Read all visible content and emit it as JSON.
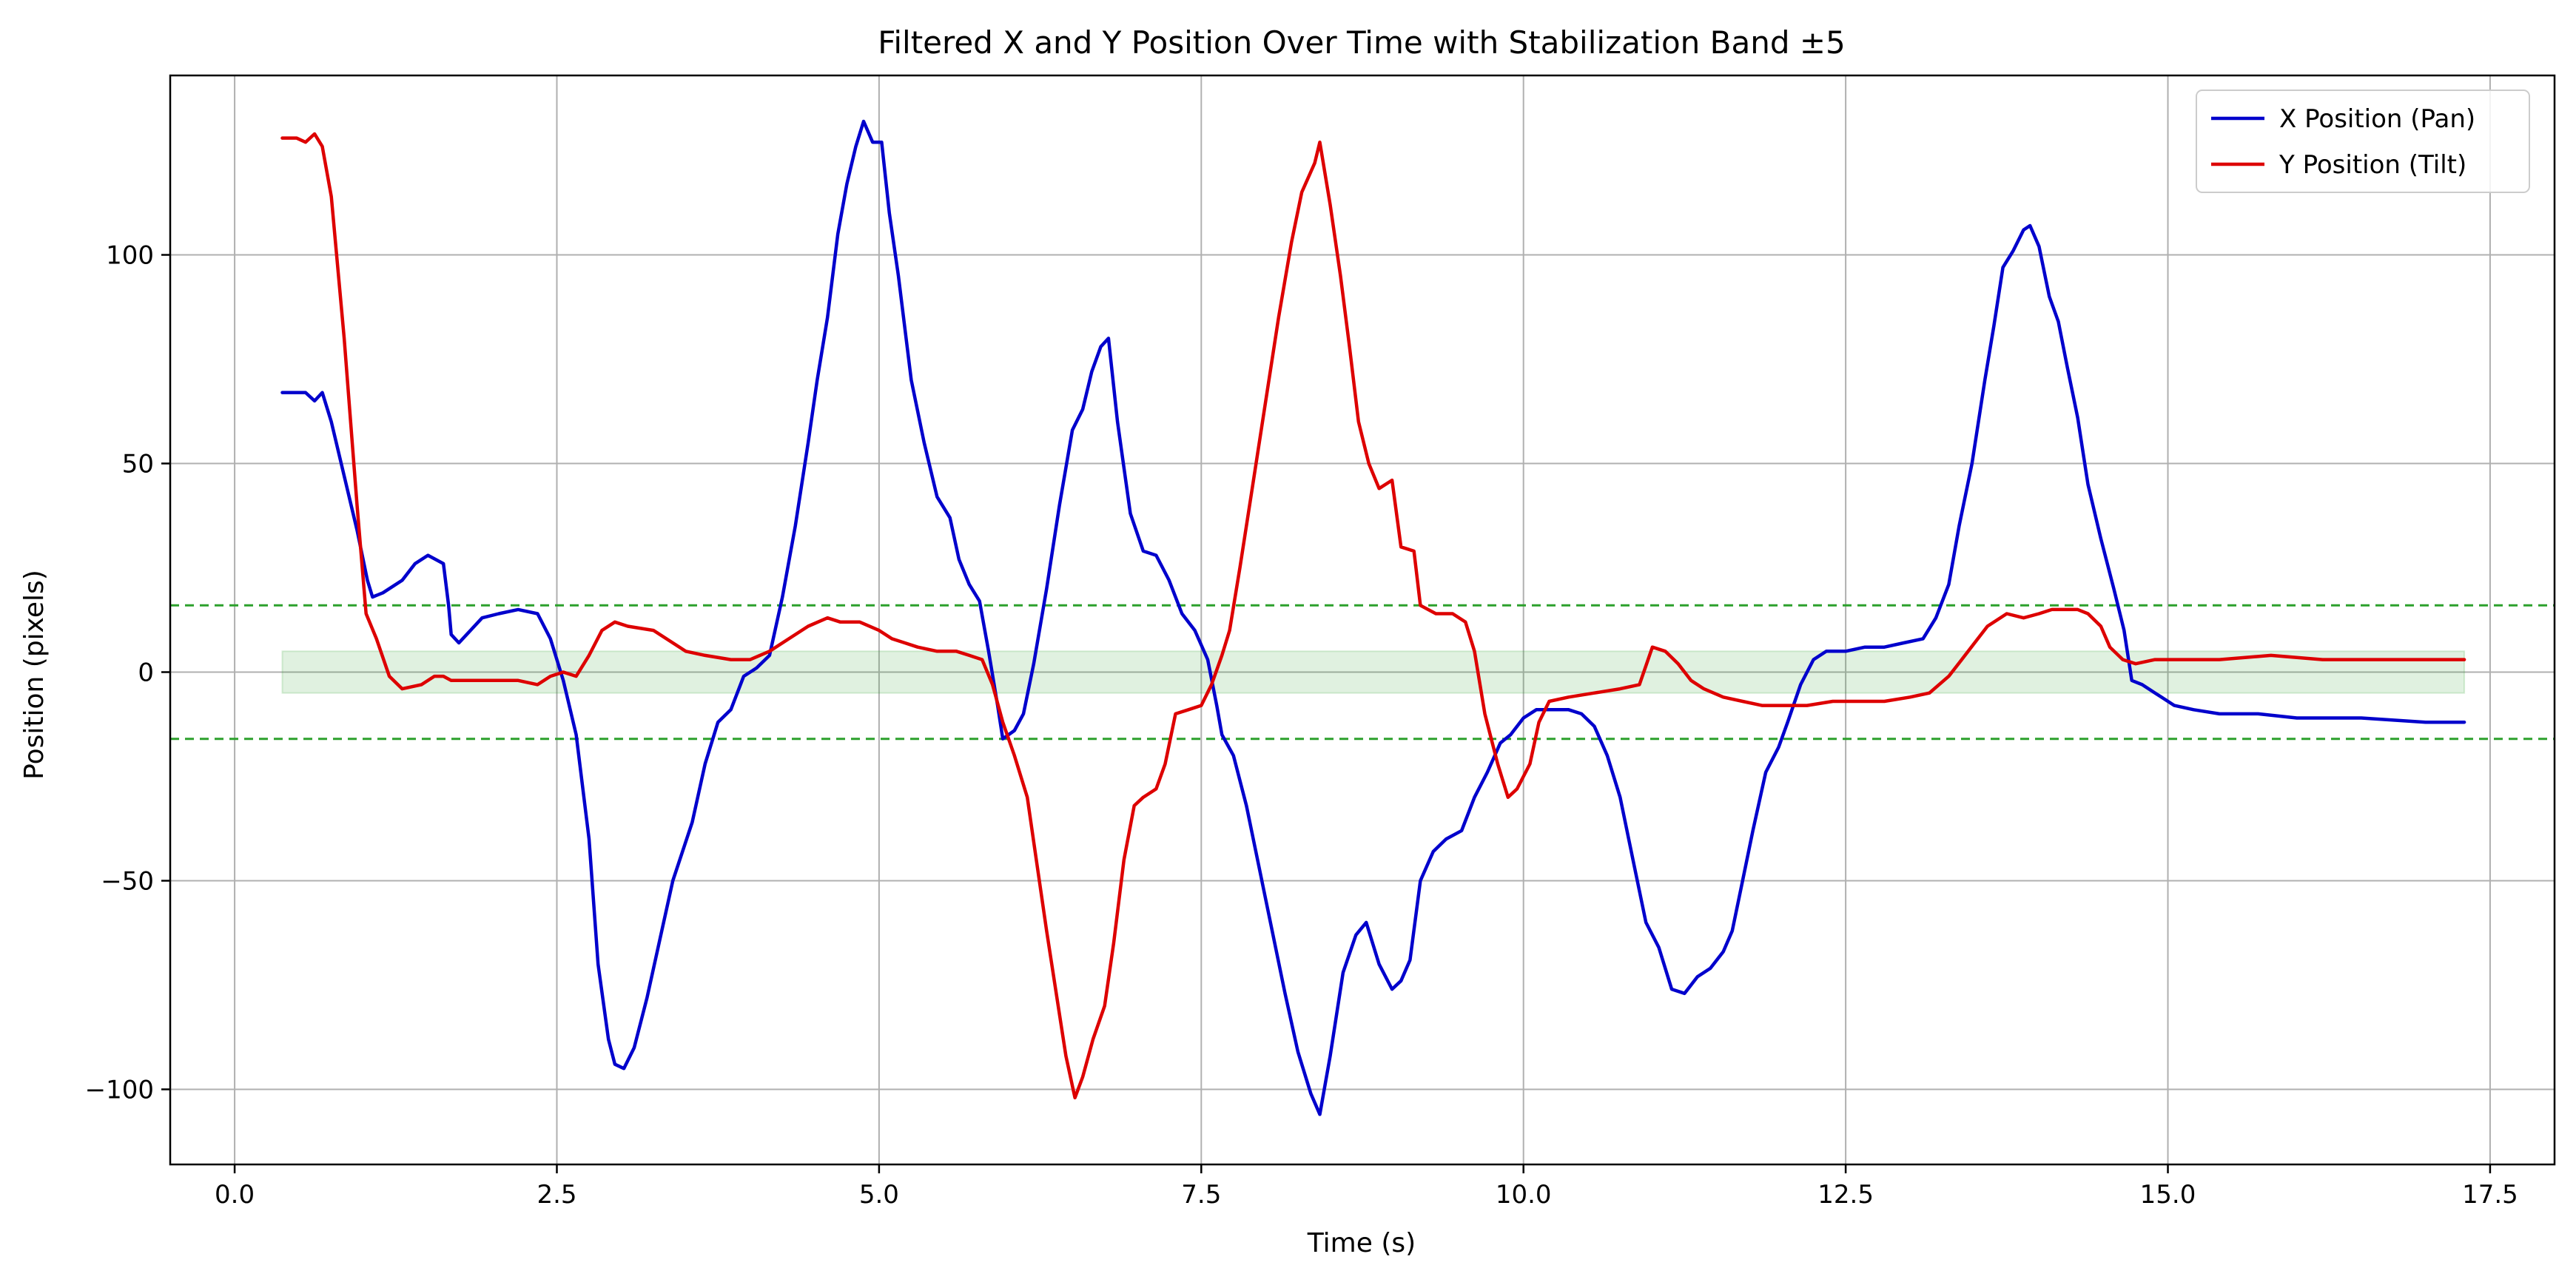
{
  "chart_data": {
    "type": "line",
    "title": "Filtered X and Y Position Over Time with Stabilization Band ±5",
    "xlabel": "Time (s)",
    "ylabel": "Position (pixels)",
    "xlim": [
      -0.5,
      18.0
    ],
    "ylim": [
      -118,
      143
    ],
    "x_ticks": [
      0.0,
      2.5,
      5.0,
      7.5,
      10.0,
      12.5,
      15.0,
      17.5
    ],
    "x_tick_labels": [
      "0.0",
      "2.5",
      "5.0",
      "7.5",
      "10.0",
      "12.5",
      "15.0",
      "17.5"
    ],
    "y_ticks": [
      -100,
      -50,
      0,
      50,
      100
    ],
    "y_tick_labels": [
      "−100",
      "−50",
      "0",
      "50",
      "100"
    ],
    "grid": true,
    "legend_position": "top-right",
    "stabilization_band": {
      "x_start": 0.37,
      "x_end": 17.3,
      "y_min": -5,
      "y_max": 5,
      "color": "#2ca02c"
    },
    "threshold_lines": [
      16,
      -16
    ],
    "threshold_color": "#2ca02c",
    "series": [
      {
        "name": "X Position (Pan)",
        "color": "#0000cc",
        "points": [
          [
            0.37,
            67
          ],
          [
            0.55,
            67
          ],
          [
            0.62,
            65
          ],
          [
            0.68,
            67
          ],
          [
            0.75,
            60
          ],
          [
            0.85,
            47
          ],
          [
            0.95,
            34
          ],
          [
            1.03,
            22
          ],
          [
            1.07,
            18
          ],
          [
            1.15,
            19
          ],
          [
            1.3,
            22
          ],
          [
            1.4,
            26
          ],
          [
            1.5,
            28
          ],
          [
            1.62,
            26
          ],
          [
            1.66,
            16
          ],
          [
            1.68,
            9
          ],
          [
            1.74,
            7
          ],
          [
            1.8,
            9
          ],
          [
            1.92,
            13
          ],
          [
            2.05,
            14
          ],
          [
            2.2,
            15
          ],
          [
            2.35,
            14
          ],
          [
            2.45,
            8
          ],
          [
            2.55,
            -2
          ],
          [
            2.65,
            -15
          ],
          [
            2.75,
            -40
          ],
          [
            2.82,
            -70
          ],
          [
            2.9,
            -88
          ],
          [
            2.95,
            -94
          ],
          [
            3.02,
            -95
          ],
          [
            3.1,
            -90
          ],
          [
            3.2,
            -78
          ],
          [
            3.3,
            -64
          ],
          [
            3.4,
            -50
          ],
          [
            3.55,
            -36
          ],
          [
            3.65,
            -22
          ],
          [
            3.75,
            -12
          ],
          [
            3.85,
            -9
          ],
          [
            3.95,
            -1
          ],
          [
            4.05,
            1
          ],
          [
            4.15,
            4
          ],
          [
            4.25,
            18
          ],
          [
            4.35,
            35
          ],
          [
            4.45,
            55
          ],
          [
            4.52,
            70
          ],
          [
            4.6,
            85
          ],
          [
            4.68,
            105
          ],
          [
            4.75,
            117
          ],
          [
            4.82,
            126
          ],
          [
            4.88,
            132
          ],
          [
            4.95,
            127
          ],
          [
            5.02,
            127
          ],
          [
            5.08,
            110
          ],
          [
            5.15,
            95
          ],
          [
            5.25,
            70
          ],
          [
            5.35,
            55
          ],
          [
            5.45,
            42
          ],
          [
            5.55,
            37
          ],
          [
            5.62,
            27
          ],
          [
            5.7,
            21
          ],
          [
            5.78,
            17
          ],
          [
            5.85,
            5
          ],
          [
            5.92,
            -8
          ],
          [
            5.96,
            -16
          ],
          [
            6.05,
            -14
          ],
          [
            6.12,
            -10
          ],
          [
            6.2,
            2
          ],
          [
            6.3,
            20
          ],
          [
            6.4,
            40
          ],
          [
            6.5,
            58
          ],
          [
            6.58,
            63
          ],
          [
            6.65,
            72
          ],
          [
            6.72,
            78
          ],
          [
            6.78,
            80
          ],
          [
            6.85,
            60
          ],
          [
            6.95,
            38
          ],
          [
            7.05,
            29
          ],
          [
            7.15,
            28
          ],
          [
            7.25,
            22
          ],
          [
            7.35,
            14
          ],
          [
            7.45,
            10
          ],
          [
            7.55,
            3
          ],
          [
            7.62,
            -8
          ],
          [
            7.66,
            -15
          ],
          [
            7.75,
            -20
          ],
          [
            7.85,
            -32
          ],
          [
            7.95,
            -47
          ],
          [
            8.05,
            -62
          ],
          [
            8.15,
            -77
          ],
          [
            8.25,
            -91
          ],
          [
            8.35,
            -101
          ],
          [
            8.42,
            -106
          ],
          [
            8.5,
            -92
          ],
          [
            8.6,
            -72
          ],
          [
            8.7,
            -63
          ],
          [
            8.78,
            -60
          ],
          [
            8.88,
            -70
          ],
          [
            8.98,
            -76
          ],
          [
            9.05,
            -74
          ],
          [
            9.12,
            -69
          ],
          [
            9.2,
            -50
          ],
          [
            9.3,
            -43
          ],
          [
            9.4,
            -40
          ],
          [
            9.52,
            -38
          ],
          [
            9.62,
            -30
          ],
          [
            9.72,
            -24
          ],
          [
            9.82,
            -17
          ],
          [
            9.9,
            -15
          ],
          [
            10.0,
            -11
          ],
          [
            10.1,
            -9
          ],
          [
            10.2,
            -9
          ],
          [
            10.35,
            -9
          ],
          [
            10.45,
            -10
          ],
          [
            10.55,
            -13
          ],
          [
            10.65,
            -20
          ],
          [
            10.75,
            -30
          ],
          [
            10.85,
            -45
          ],
          [
            10.95,
            -60
          ],
          [
            11.05,
            -66
          ],
          [
            11.15,
            -76
          ],
          [
            11.25,
            -77
          ],
          [
            11.35,
            -73
          ],
          [
            11.45,
            -71
          ],
          [
            11.55,
            -67
          ],
          [
            11.62,
            -62
          ],
          [
            11.7,
            -50
          ],
          [
            11.78,
            -38
          ],
          [
            11.88,
            -24
          ],
          [
            11.98,
            -18
          ],
          [
            12.05,
            -12
          ],
          [
            12.15,
            -3
          ],
          [
            12.25,
            3
          ],
          [
            12.35,
            5
          ],
          [
            12.5,
            5
          ],
          [
            12.65,
            6
          ],
          [
            12.8,
            6
          ],
          [
            12.95,
            7
          ],
          [
            13.1,
            8
          ],
          [
            13.2,
            13
          ],
          [
            13.3,
            21
          ],
          [
            13.38,
            35
          ],
          [
            13.48,
            50
          ],
          [
            13.58,
            70
          ],
          [
            13.65,
            83
          ],
          [
            13.72,
            97
          ],
          [
            13.8,
            101
          ],
          [
            13.88,
            106
          ],
          [
            13.93,
            107
          ],
          [
            14.0,
            102
          ],
          [
            14.08,
            90
          ],
          [
            14.15,
            84
          ],
          [
            14.22,
            73
          ],
          [
            14.3,
            61
          ],
          [
            14.38,
            45
          ],
          [
            14.48,
            32
          ],
          [
            14.58,
            20
          ],
          [
            14.66,
            10
          ],
          [
            14.72,
            -2
          ],
          [
            14.8,
            -3
          ],
          [
            14.9,
            -5
          ],
          [
            15.05,
            -8
          ],
          [
            15.2,
            -9
          ],
          [
            15.4,
            -10
          ],
          [
            15.7,
            -10
          ],
          [
            16.0,
            -11
          ],
          [
            16.5,
            -11
          ],
          [
            17.0,
            -12
          ],
          [
            17.3,
            -12
          ]
        ]
      },
      {
        "name": "Y Position (Tilt)",
        "color": "#dd0000",
        "points": [
          [
            0.37,
            128
          ],
          [
            0.48,
            128
          ],
          [
            0.55,
            127
          ],
          [
            0.62,
            129
          ],
          [
            0.68,
            126
          ],
          [
            0.75,
            114
          ],
          [
            0.85,
            80
          ],
          [
            0.95,
            40
          ],
          [
            1.02,
            14
          ],
          [
            1.1,
            8
          ],
          [
            1.2,
            -1
          ],
          [
            1.3,
            -4
          ],
          [
            1.45,
            -3
          ],
          [
            1.55,
            -1
          ],
          [
            1.62,
            -1
          ],
          [
            1.68,
            -2
          ],
          [
            1.8,
            -2
          ],
          [
            2.0,
            -2
          ],
          [
            2.2,
            -2
          ],
          [
            2.35,
            -3
          ],
          [
            2.45,
            -1
          ],
          [
            2.55,
            0
          ],
          [
            2.65,
            -1
          ],
          [
            2.75,
            4
          ],
          [
            2.85,
            10
          ],
          [
            2.95,
            12
          ],
          [
            3.05,
            11
          ],
          [
            3.25,
            10
          ],
          [
            3.4,
            7
          ],
          [
            3.5,
            5
          ],
          [
            3.65,
            4
          ],
          [
            3.85,
            3
          ],
          [
            4.0,
            3
          ],
          [
            4.15,
            5
          ],
          [
            4.3,
            8
          ],
          [
            4.45,
            11
          ],
          [
            4.6,
            13
          ],
          [
            4.7,
            12
          ],
          [
            4.85,
            12
          ],
          [
            5.0,
            10
          ],
          [
            5.1,
            8
          ],
          [
            5.2,
            7
          ],
          [
            5.3,
            6
          ],
          [
            5.45,
            5
          ],
          [
            5.6,
            5
          ],
          [
            5.7,
            4
          ],
          [
            5.8,
            3
          ],
          [
            5.88,
            -3
          ],
          [
            5.96,
            -12
          ],
          [
            6.05,
            -20
          ],
          [
            6.15,
            -30
          ],
          [
            6.22,
            -45
          ],
          [
            6.3,
            -62
          ],
          [
            6.38,
            -78
          ],
          [
            6.45,
            -92
          ],
          [
            6.52,
            -102
          ],
          [
            6.58,
            -97
          ],
          [
            6.66,
            -88
          ],
          [
            6.75,
            -80
          ],
          [
            6.82,
            -65
          ],
          [
            6.9,
            -45
          ],
          [
            6.98,
            -32
          ],
          [
            7.05,
            -30
          ],
          [
            7.15,
            -28
          ],
          [
            7.22,
            -22
          ],
          [
            7.3,
            -10
          ],
          [
            7.4,
            -9
          ],
          [
            7.5,
            -8
          ],
          [
            7.58,
            -3
          ],
          [
            7.66,
            4
          ],
          [
            7.72,
            10
          ],
          [
            7.8,
            25
          ],
          [
            7.9,
            45
          ],
          [
            8.0,
            65
          ],
          [
            8.1,
            85
          ],
          [
            8.2,
            103
          ],
          [
            8.28,
            115
          ],
          [
            8.38,
            122
          ],
          [
            8.42,
            127
          ],
          [
            8.5,
            112
          ],
          [
            8.58,
            95
          ],
          [
            8.65,
            78
          ],
          [
            8.72,
            60
          ],
          [
            8.8,
            50
          ],
          [
            8.88,
            44
          ],
          [
            8.98,
            46
          ],
          [
            9.05,
            30
          ],
          [
            9.15,
            29
          ],
          [
            9.2,
            16
          ],
          [
            9.32,
            14
          ],
          [
            9.45,
            14
          ],
          [
            9.55,
            12
          ],
          [
            9.62,
            5
          ],
          [
            9.7,
            -10
          ],
          [
            9.8,
            -22
          ],
          [
            9.88,
            -30
          ],
          [
            9.95,
            -28
          ],
          [
            10.05,
            -22
          ],
          [
            10.12,
            -12
          ],
          [
            10.2,
            -7
          ],
          [
            10.35,
            -6
          ],
          [
            10.55,
            -5
          ],
          [
            10.75,
            -4
          ],
          [
            10.9,
            -3
          ],
          [
            11.0,
            6
          ],
          [
            11.1,
            5
          ],
          [
            11.2,
            2
          ],
          [
            11.3,
            -2
          ],
          [
            11.4,
            -4
          ],
          [
            11.55,
            -6
          ],
          [
            11.7,
            -7
          ],
          [
            11.85,
            -8
          ],
          [
            12.0,
            -8
          ],
          [
            12.2,
            -8
          ],
          [
            12.4,
            -7
          ],
          [
            12.6,
            -7
          ],
          [
            12.8,
            -7
          ],
          [
            13.0,
            -6
          ],
          [
            13.15,
            -5
          ],
          [
            13.3,
            -1
          ],
          [
            13.4,
            3
          ],
          [
            13.5,
            7
          ],
          [
            13.6,
            11
          ],
          [
            13.75,
            14
          ],
          [
            13.88,
            13
          ],
          [
            14.0,
            14
          ],
          [
            14.1,
            15
          ],
          [
            14.2,
            15
          ],
          [
            14.3,
            15
          ],
          [
            14.38,
            14
          ],
          [
            14.48,
            11
          ],
          [
            14.55,
            6
          ],
          [
            14.65,
            3
          ],
          [
            14.75,
            2
          ],
          [
            14.9,
            3
          ],
          [
            15.1,
            3
          ],
          [
            15.4,
            3
          ],
          [
            15.8,
            4
          ],
          [
            16.2,
            3
          ],
          [
            16.6,
            3
          ],
          [
            17.0,
            3
          ],
          [
            17.3,
            3
          ]
        ]
      }
    ]
  }
}
